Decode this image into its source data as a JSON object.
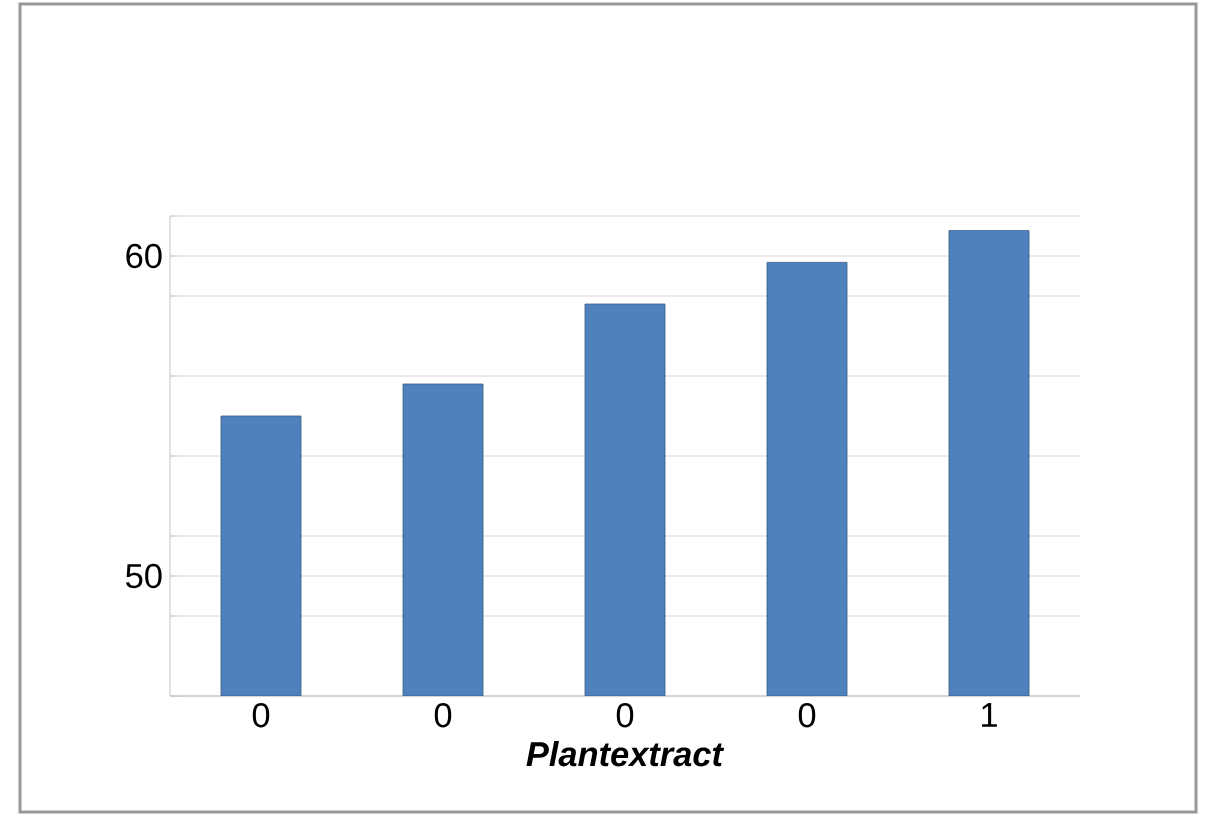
{
  "chart_data": {
    "type": "bar",
    "xlabel": "*Plantextract*",
    "categories": [
      "0",
      "0",
      "0",
      "0",
      "1"
    ],
    "values": [
      55,
      56,
      58.5,
      59.8,
      60.8
    ],
    "color": "#4f81bd",
    "ylim": [
      46.25,
      61.25
    ],
    "yticks": [
      {
        "value": 46.25,
        "label": null
      },
      {
        "value": 48.75,
        "label": null
      },
      50,
      {
        "value": 51.25,
        "label": null
      },
      {
        "value": 53.75,
        "label": null
      },
      {
        "value": 56.25,
        "label": null
      },
      {
        "value": 58.75,
        "label": null
      },
      60,
      {
        "value": 61.25,
        "label": null
      }
    ],
    "grid": "y"
  }
}
